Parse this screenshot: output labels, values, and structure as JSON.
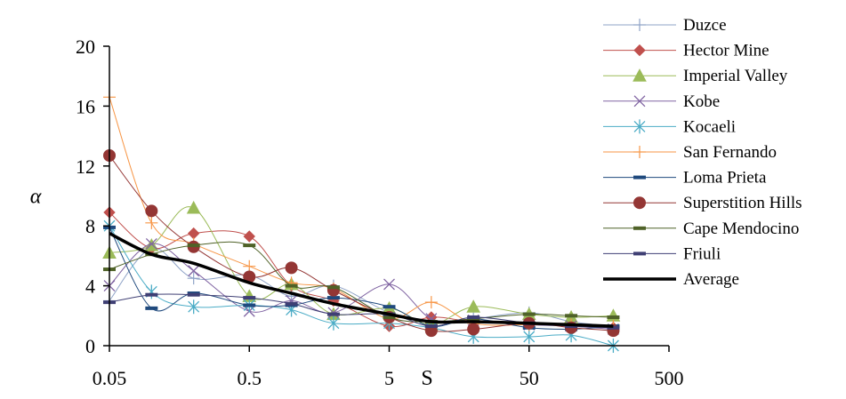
{
  "chart_data": {
    "type": "line",
    "x_scale": "log",
    "xlim": [
      0.05,
      500
    ],
    "ylim": [
      0,
      20
    ],
    "ylabel": "α",
    "xlabel": "S",
    "x_ticks": [
      "0.05",
      "0.5",
      "5",
      "50",
      "500"
    ],
    "x_tick_values": [
      0.05,
      0.5,
      5,
      50,
      500
    ],
    "y_ticks": [
      "0",
      "4",
      "8",
      "12",
      "16",
      "20"
    ],
    "y_tick_values": [
      0,
      4,
      8,
      12,
      16,
      20
    ],
    "legend_position": "right",
    "series": [
      {
        "name": "Duzce",
        "color": "#8fa3c7",
        "marker": "plus",
        "x": [
          0.05,
          0.1,
          0.2,
          0.5,
          1,
          2,
          5,
          10,
          20,
          50,
          100,
          200
        ],
        "y": [
          3.0,
          6.5,
          4.5,
          4.7,
          3.3,
          4.0,
          2.2,
          1.6,
          1.8,
          2.2,
          1.6,
          1.3
        ]
      },
      {
        "name": "Hector Mine",
        "color": "#c0504d",
        "marker": "diamond",
        "x": [
          0.05,
          0.1,
          0.2,
          0.5,
          1,
          2,
          5,
          10,
          20,
          50,
          100,
          200
        ],
        "y": [
          8.9,
          6.5,
          7.5,
          7.3,
          4.0,
          3.0,
          1.3,
          1.9,
          1.6,
          1.5,
          1.4,
          1.2
        ]
      },
      {
        "name": "Imperial Valley",
        "color": "#9bbb59",
        "marker": "triangle",
        "x": [
          0.05,
          0.1,
          0.2,
          0.5,
          1,
          2,
          5,
          10,
          20,
          50,
          100,
          200
        ],
        "y": [
          6.2,
          6.7,
          9.2,
          3.3,
          4.1,
          2.1,
          2.5,
          1.4,
          2.6,
          2.1,
          1.9,
          2.0
        ]
      },
      {
        "name": "Kobe",
        "color": "#8064a2",
        "marker": "x",
        "x": [
          0.05,
          0.1,
          0.2,
          0.5,
          1,
          2,
          5,
          10,
          20,
          50,
          100,
          200
        ],
        "y": [
          4.0,
          6.8,
          5.0,
          2.3,
          3.0,
          2.2,
          4.1,
          1.8,
          1.7,
          1.4,
          1.3,
          1.1
        ]
      },
      {
        "name": "Kocaeli",
        "color": "#4bacc6",
        "marker": "asterisk",
        "x": [
          0.05,
          0.1,
          0.2,
          0.5,
          1,
          2,
          5,
          10,
          20,
          50,
          100,
          200
        ],
        "y": [
          8.0,
          3.6,
          2.6,
          2.7,
          2.4,
          1.5,
          1.5,
          1.2,
          0.6,
          0.6,
          0.7,
          0.0
        ]
      },
      {
        "name": "San Fernando",
        "color": "#f79646",
        "marker": "plus",
        "x": [
          0.05,
          0.1,
          0.2,
          0.5,
          1,
          2,
          5,
          10,
          20,
          50,
          100,
          200
        ],
        "y": [
          16.6,
          8.2,
          6.8,
          5.3,
          4.2,
          3.8,
          1.8,
          2.9,
          1.5,
          1.4,
          1.4,
          1.3
        ]
      },
      {
        "name": "Loma Prieta",
        "color": "#1f497d",
        "marker": "dash",
        "x": [
          0.05,
          0.1,
          0.2,
          0.5,
          1,
          2,
          5,
          10,
          20,
          50,
          100,
          200
        ],
        "y": [
          7.9,
          2.5,
          3.5,
          2.7,
          2.7,
          3.2,
          2.6,
          1.3,
          1.8,
          1.2,
          1.1,
          1.3
        ]
      },
      {
        "name": "Superstition Hills",
        "color": "#943634",
        "marker": "circle",
        "x": [
          0.05,
          0.1,
          0.2,
          0.5,
          1,
          2,
          5,
          10,
          20,
          50,
          100,
          200
        ],
        "y": [
          12.7,
          9.0,
          6.6,
          4.6,
          5.2,
          3.7,
          1.9,
          1.0,
          1.1,
          1.5,
          1.2,
          1.0
        ]
      },
      {
        "name": "Cape Mendocino",
        "color": "#4f6228",
        "marker": "dash",
        "x": [
          0.05,
          0.1,
          0.2,
          0.5,
          1,
          2,
          5,
          10,
          20,
          50,
          100,
          200
        ],
        "y": [
          5.1,
          6.1,
          6.7,
          6.7,
          4.0,
          3.9,
          1.9,
          1.6,
          1.8,
          2.1,
          2.0,
          1.9
        ]
      },
      {
        "name": "Friuli",
        "color": "#3f3f74",
        "marker": "dash",
        "x": [
          0.05,
          0.1,
          0.2,
          0.5,
          1,
          2,
          5,
          10,
          20,
          50,
          100,
          200
        ],
        "y": [
          2.9,
          3.4,
          3.4,
          3.2,
          2.8,
          2.1,
          2.1,
          1.3,
          1.9,
          1.5,
          1.3,
          1.2
        ]
      },
      {
        "name": "Average",
        "color": "#000000",
        "marker": "none",
        "bold": true,
        "x": [
          0.05,
          0.1,
          0.2,
          0.5,
          1,
          2,
          5,
          10,
          20,
          50,
          100,
          200
        ],
        "y": [
          7.5,
          6.1,
          5.5,
          4.2,
          3.5,
          2.8,
          2.1,
          1.6,
          1.6,
          1.5,
          1.4,
          1.3
        ]
      }
    ]
  }
}
